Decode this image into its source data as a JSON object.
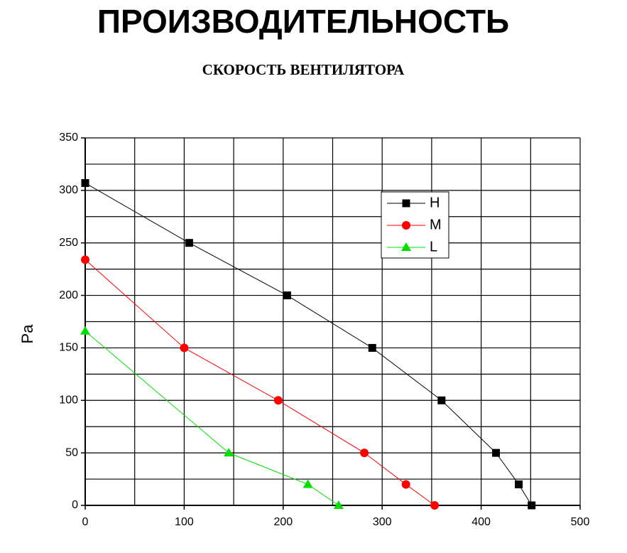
{
  "chart_data": {
    "type": "line",
    "title": "ПРОИЗВОДИТЕЛЬНОСТЬ",
    "subtitle": "СКОРОСТЬ ВЕНТИЛЯТОРА",
    "y_label": "Pa",
    "xlim": [
      0,
      500
    ],
    "xticks": [
      0,
      100,
      200,
      300,
      400,
      500
    ],
    "x_minor_ticks": [
      50,
      150,
      250,
      350,
      450
    ],
    "ylim": [
      0,
      350
    ],
    "yticks": [
      0,
      50,
      100,
      150,
      200,
      250,
      300,
      350
    ],
    "y_minor_ticks": [
      25,
      75,
      125,
      175,
      225,
      275,
      325
    ],
    "grid": true,
    "legend": "upper right",
    "series": [
      {
        "name": "H",
        "color": "#000000",
        "marker": "square",
        "x": [
          0,
          105,
          204,
          290,
          360,
          415,
          438,
          451
        ],
        "values": [
          307,
          250,
          200,
          150,
          100,
          50,
          20,
          0
        ]
      },
      {
        "name": "M",
        "color": "#ff0000",
        "marker": "circle",
        "x": [
          0,
          100,
          195,
          282,
          324,
          353
        ],
        "values": [
          234,
          150,
          100,
          50,
          20,
          0
        ]
      },
      {
        "name": "L",
        "color": "#00e000",
        "marker": "triangle",
        "x": [
          0,
          145,
          225,
          256
        ],
        "values": [
          166,
          50,
          20,
          0
        ]
      }
    ]
  }
}
